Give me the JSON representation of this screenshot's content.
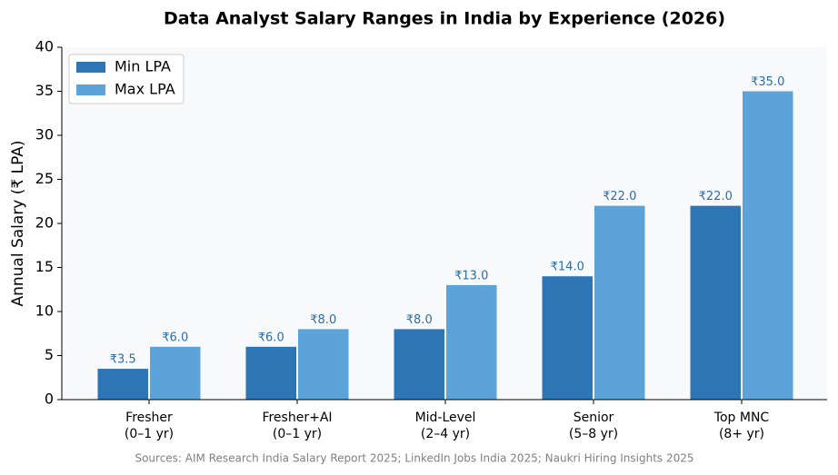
{
  "chart_data": {
    "type": "bar",
    "title": "Data Analyst Salary Ranges in India by Experience (2026)",
    "ylabel": "Annual Salary (₹ LPA)",
    "categories": [
      [
        "Fresher",
        "(0–1 yr)"
      ],
      [
        "Fresher+AI",
        "(0–1 yr)"
      ],
      [
        "Mid-Level",
        "(2–4 yr)"
      ],
      [
        "Senior",
        "(5–8 yr)"
      ],
      [
        "Top MNC",
        "(8+ yr)"
      ]
    ],
    "series": [
      {
        "name": "Min LPA",
        "color": "#2e75b6",
        "values": [
          3.5,
          6,
          8,
          14,
          22
        ],
        "value_labels": [
          "₹3.5",
          "₹6.0",
          "₹8.0",
          "₹14.0",
          "₹22.0"
        ]
      },
      {
        "name": "Max LPA",
        "color": "#5ba3d9",
        "values": [
          6,
          8,
          13,
          22,
          35
        ],
        "value_labels": [
          "₹6.0",
          "₹8.0",
          "₹13.0",
          "₹22.0",
          "₹35.0"
        ]
      }
    ],
    "ylim": [
      0,
      40
    ],
    "yticks": [
      0,
      5,
      10,
      15,
      20,
      25,
      30,
      35,
      40
    ],
    "legend": "upper left",
    "source": "Sources: AIM Research India Salary Report 2025; LinkedIn Jobs India 2025; Naukri Hiring Insights 2025"
  }
}
